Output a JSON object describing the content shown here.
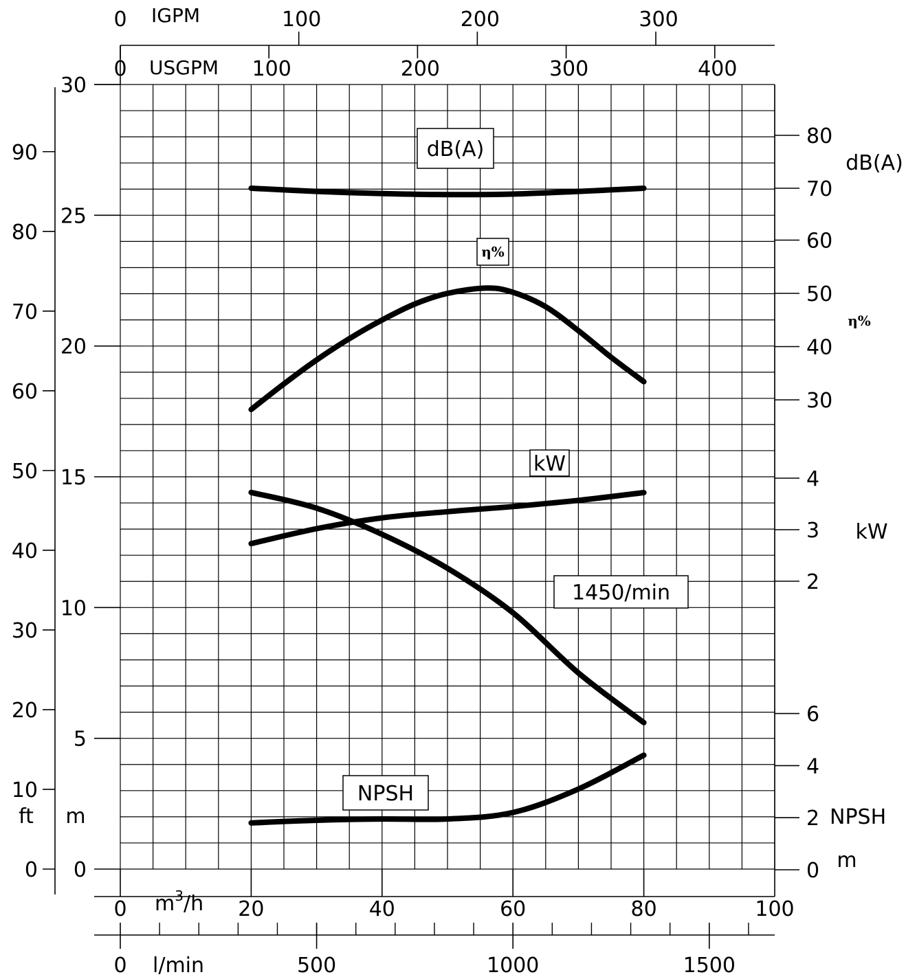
{
  "chart_data": {
    "type": "line",
    "title": "",
    "speed_label": "1450/min",
    "x_axis": {
      "label": "m³/h",
      "unit_main": "m",
      "unit_sup": "3",
      "unit_rest": "/h",
      "range": [
        0,
        100
      ],
      "ticks": [
        0,
        20,
        40,
        60,
        80,
        100
      ]
    },
    "x_axis_lmin": {
      "label": "l/min",
      "ticks": [
        0,
        500,
        1000,
        1500
      ]
    },
    "x_axis_usgpm": {
      "label": "USGPM",
      "ticks": [
        0,
        100,
        200,
        300,
        400
      ]
    },
    "x_axis_igpm": {
      "label": "IGPM",
      "ticks": [
        0,
        100,
        200,
        300
      ]
    },
    "y_axis_m": {
      "unit": "m",
      "range": [
        0,
        30
      ],
      "ticks": [
        0,
        5,
        10,
        15,
        20,
        25,
        30
      ]
    },
    "y_axis_ft": {
      "unit": "ft",
      "ticks": [
        0,
        10,
        20,
        30,
        40,
        50,
        60,
        70,
        80,
        90
      ]
    },
    "right_axes": {
      "db": {
        "label": "dB(A)",
        "ticks": [
          70,
          80
        ]
      },
      "eta": {
        "label": "η%",
        "ticks": [
          30,
          40,
          50,
          60
        ]
      },
      "kw": {
        "label": "kW",
        "ticks": [
          2,
          3,
          4
        ]
      },
      "npsh": {
        "label": "NPSH",
        "unit": "m",
        "ticks": [
          0,
          2,
          4,
          6
        ]
      }
    },
    "series": [
      {
        "name": "dB(A)",
        "x": [
          20,
          30,
          40,
          50,
          60,
          70,
          80
        ],
        "y": [
          70.0,
          69.4,
          69.0,
          68.8,
          68.9,
          69.4,
          70.0
        ]
      },
      {
        "name": "η%",
        "x": [
          20,
          25,
          30,
          35,
          40,
          45,
          50,
          56,
          60,
          65,
          70,
          75,
          80
        ],
        "y": [
          28.2,
          33.0,
          37.5,
          41.5,
          45.0,
          48.0,
          50.0,
          51.0,
          50.2,
          47.5,
          43.0,
          38.0,
          33.4
        ]
      },
      {
        "name": "kW",
        "x": [
          20,
          30,
          40,
          50,
          60,
          70,
          80
        ],
        "y": [
          2.73,
          3.02,
          3.23,
          3.35,
          3.45,
          3.57,
          3.72
        ]
      },
      {
        "name": "1450/min",
        "x": [
          20,
          30,
          40,
          50,
          60,
          70,
          80
        ],
        "y": [
          14.4,
          13.8,
          12.8,
          11.5,
          9.8,
          7.5,
          5.6
        ]
      },
      {
        "name": "NPSH",
        "x": [
          20,
          30,
          40,
          50,
          60,
          70,
          80
        ],
        "y": [
          1.8,
          1.9,
          1.95,
          1.95,
          2.2,
          3.1,
          4.4
        ]
      }
    ]
  }
}
